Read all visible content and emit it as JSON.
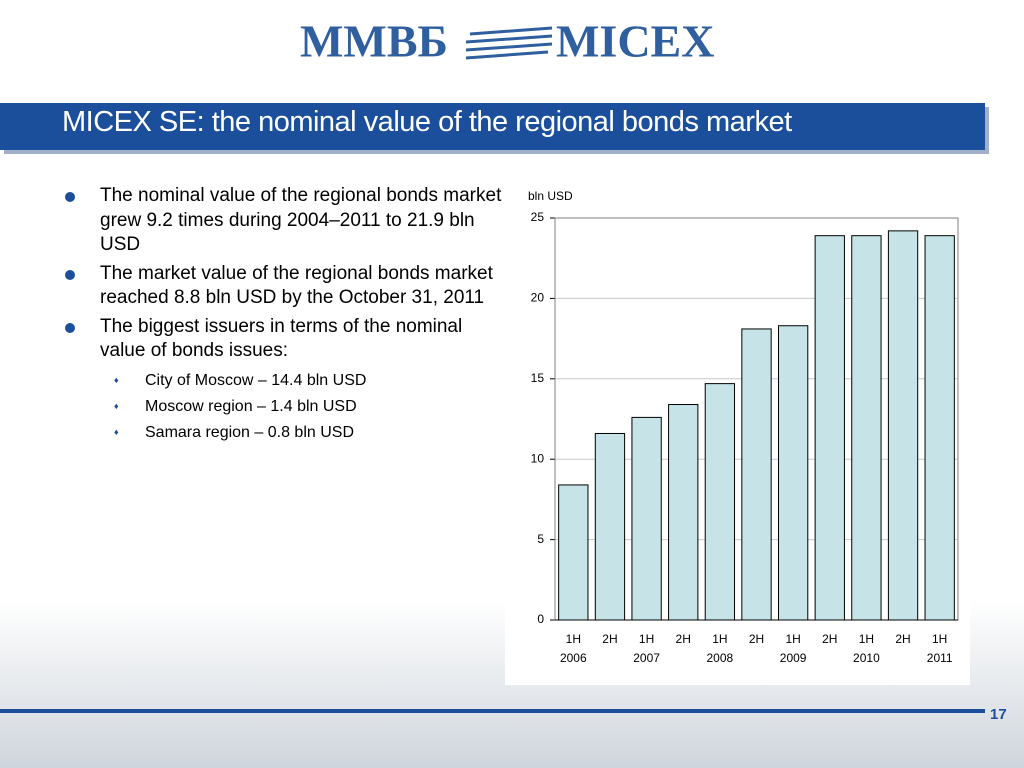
{
  "logo": {
    "left": "ММВБ",
    "right": "MICEX"
  },
  "title": "MICEX SE: the nominal value of the regional bonds market",
  "bullets": [
    {
      "text": "The nominal value of the regional bonds market grew 9.2 times during 2004–2011 to 21.9 bln USD"
    },
    {
      "text": "The market value of the regional bonds market reached 8.8 bln USD by the October 31, 2011"
    },
    {
      "text": "The biggest issuers in terms of the nominal value of bonds issues:",
      "sub": [
        "City of Moscow – 14.4 bln USD",
        "Moscow region – 1.4 bln USD",
        "Samara region – 0.8 bln USD"
      ]
    }
  ],
  "page_number": "17",
  "chart_data": {
    "type": "bar",
    "y_label": "bln USD",
    "categories": [
      "1H",
      "2H",
      "1H",
      "2H",
      "1H",
      "2H",
      "1H",
      "2H",
      "1H",
      "2H",
      "1H"
    ],
    "year_labels": [
      "2006",
      null,
      "2007",
      null,
      "2008",
      null,
      "2009",
      null,
      "2010",
      null,
      "2011"
    ],
    "values": [
      8.4,
      11.6,
      12.6,
      13.4,
      14.7,
      18.1,
      18.3,
      23.9,
      23.9,
      24.2,
      23.9
    ],
    "color": "#c6e4e7",
    "ylim": [
      0,
      25
    ],
    "yticks": [
      0,
      5,
      10,
      15,
      20,
      25
    ],
    "grid": true
  }
}
